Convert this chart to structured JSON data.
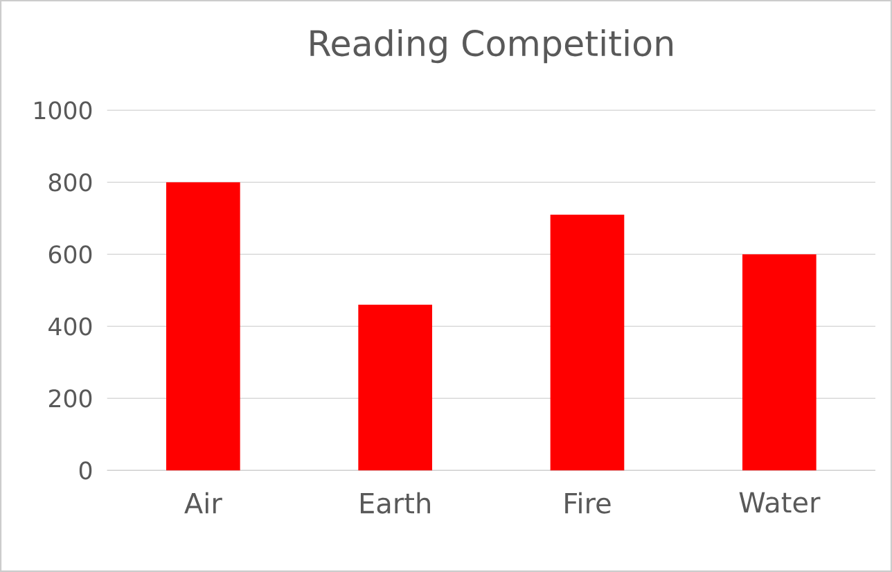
{
  "chart_data": {
    "type": "bar",
    "title": "Reading Competition",
    "categories": [
      "Air",
      "Earth",
      "Fire",
      "Water"
    ],
    "values": [
      800,
      460,
      710,
      600
    ],
    "color": "#ff0000",
    "ylim": [
      0,
      1000
    ],
    "yticks": [
      0,
      200,
      400,
      600,
      800,
      1000
    ],
    "grid": "y"
  }
}
